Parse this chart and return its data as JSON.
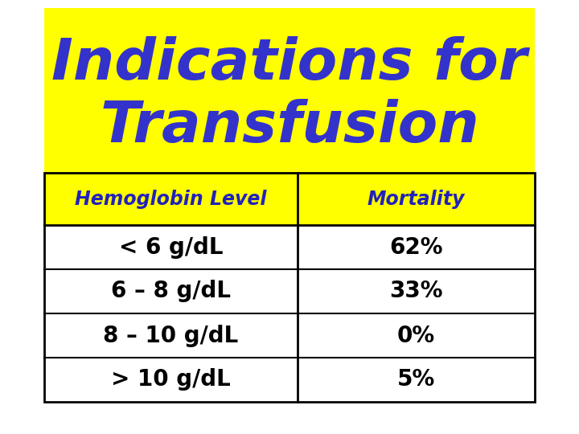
{
  "title_line1": "Indications for",
  "title_line2": "Transfusion",
  "title_color": "#3333CC",
  "title_bg_color": "#FFFF00",
  "bg_color": "#FFFFFF",
  "header_bg_color": "#FFFF00",
  "header_text_color": "#2222BB",
  "body_text_color": "#000000",
  "table_bg_color": "#FFFFFF",
  "col1_header": "Hemoglobin Level",
  "col2_header": "Mortality",
  "rows": [
    [
      "< 6 g/dL",
      "62%"
    ],
    [
      "6 – 8 g/dL",
      "33%"
    ],
    [
      "8 – 10 g/dL",
      "0%"
    ],
    [
      "> 10 g/dL",
      "5%"
    ]
  ],
  "border_color": "#000000",
  "title_fontsize": 52,
  "header_fontsize": 17,
  "body_fontsize": 20,
  "fig_width": 7.2,
  "fig_height": 5.4,
  "dpi": 100
}
